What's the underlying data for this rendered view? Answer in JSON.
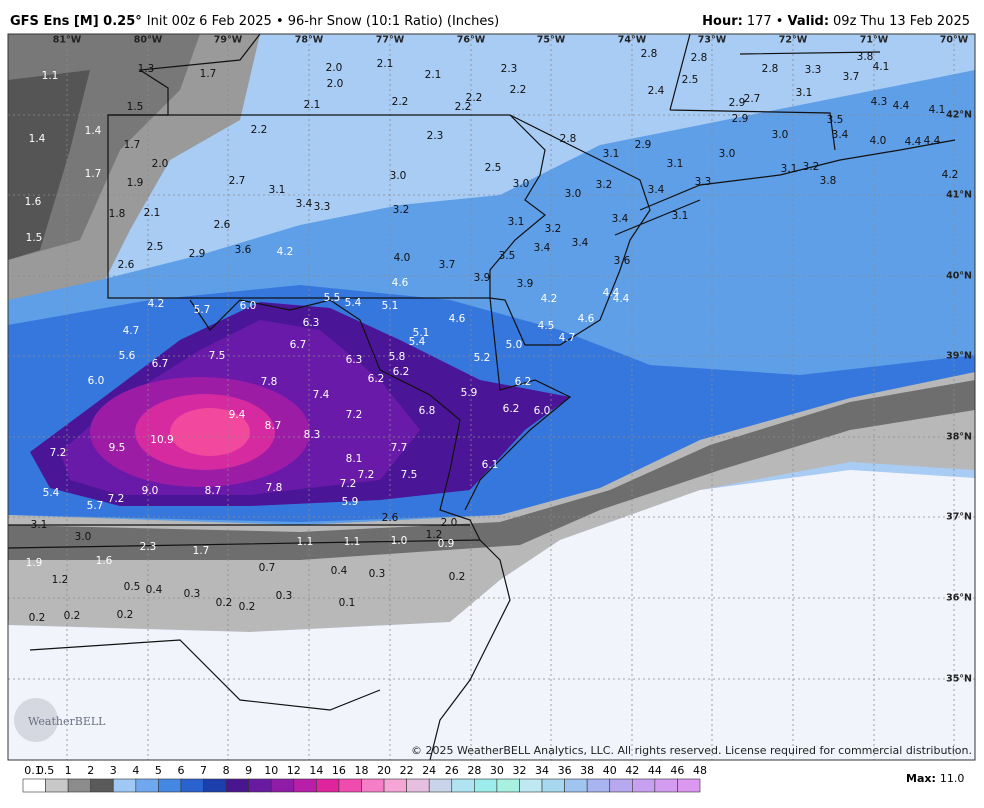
{
  "header": {
    "title_bold": "GFS Ens [M] 0.25°",
    "title_rest": "Init 00z 6 Feb 2025 • 96-hr Snow (10:1 Ratio) (Inches)",
    "hour_label": "Hour:",
    "hour_value": "177 •",
    "valid_label": "Valid:",
    "valid_value": "09z Thu 13 Feb 2025"
  },
  "map": {
    "longitudes": [
      "81°W",
      "80°W",
      "79°W",
      "78°W",
      "77°W",
      "76°W",
      "75°W",
      "74°W",
      "73°W",
      "72°W",
      "71°W",
      "70°W"
    ],
    "latitudes": [
      "42°N",
      "41°N",
      "40°N",
      "39°N",
      "38°N",
      "37°N",
      "36°N",
      "35°N"
    ],
    "point_labels": [
      "1.1",
      "1.3",
      "1.7",
      "1.5",
      "1.4",
      "1.4",
      "1.7",
      "2.0",
      "1.7",
      "1.9",
      "1.6",
      "1.8",
      "2.1",
      "1.5",
      "2.6",
      "2.5",
      "2.9",
      "3.6",
      "4.2",
      "2.2",
      "2.7",
      "3.1",
      "3.4",
      "3.3",
      "2.6",
      "2.0",
      "2.1",
      "2.0",
      "2.1",
      "2.3",
      "2.2",
      "2.2",
      "2.2",
      "2.1",
      "2.2",
      "2.3",
      "2.8",
      "2.4",
      "2.8",
      "2.8",
      "2.5",
      "2.8",
      "3.3",
      "3.1",
      "2.9",
      "2.7",
      "2.9",
      "3.8",
      "4.1",
      "3.7",
      "4.3",
      "4.4",
      "4.1",
      "3.5",
      "3.0",
      "3.1",
      "2.9",
      "3.0",
      "3.4",
      "4.0",
      "4.4",
      "4.4",
      "3.1",
      "3.3",
      "3.1",
      "3.2",
      "3.8",
      "4.2",
      "3.0",
      "2.5",
      "3.0",
      "3.2",
      "3.4",
      "3.0",
      "3.2",
      "3.1",
      "3.4",
      "3.1",
      "3.2",
      "3.4",
      "3.4",
      "3.6",
      "4.0",
      "3.7",
      "3.9",
      "3.5",
      "4.6",
      "3.9",
      "4.2",
      "4.4",
      "4.4",
      "5.5",
      "5.4",
      "5.1",
      "4.6",
      "4.5",
      "4.7",
      "4.6",
      "5.1",
      "5.4",
      "5.0",
      "5.2",
      "4.2",
      "5.7",
      "6.0",
      "6.3",
      "6.7",
      "4.7",
      "5.6",
      "6.7",
      "7.5",
      "6.3",
      "5.8",
      "6.2",
      "6.2",
      "6.0",
      "7.8",
      "7.4",
      "5.9",
      "6.2",
      "6.2",
      "6.0",
      "6.8",
      "7.2",
      "9.4",
      "8.7",
      "8.3",
      "7.7",
      "9.5",
      "10.9",
      "7.2",
      "8.1",
      "7.2",
      "7.5",
      "6.1",
      "7.2",
      "5.4",
      "9.0",
      "8.7",
      "7.8",
      "7.2",
      "5.7",
      "5.9",
      "2.6",
      "2.0",
      "3.1",
      "3.0",
      "1.2",
      "1.1",
      "1.1",
      "1.0",
      "0.9",
      "2.3",
      "1.7",
      "1.9",
      "1.6",
      "0.7",
      "0.4",
      "0.3",
      "0.2",
      "1.2",
      "0.5",
      "0.4",
      "0.3",
      "0.3",
      "0.2",
      "0.2",
      "0.1",
      "0.2",
      "0.2",
      "0.2"
    ],
    "logo": "WeatherBELL",
    "copyright": "© 2025 WeatherBELL Analytics, LLC. All rights reserved. License required for commercial distribution."
  },
  "colorbar": {
    "labels": [
      "0.1",
      "0.5",
      "1",
      "2",
      "3",
      "4",
      "5",
      "6",
      "7",
      "8",
      "9",
      "10",
      "12",
      "14",
      "16",
      "18",
      "20",
      "22",
      "24",
      "26",
      "28",
      "30",
      "32",
      "34",
      "36",
      "38",
      "40",
      "42",
      "44",
      "46",
      "48"
    ],
    "max_label": "Max:",
    "max_value": "11.0"
  }
}
